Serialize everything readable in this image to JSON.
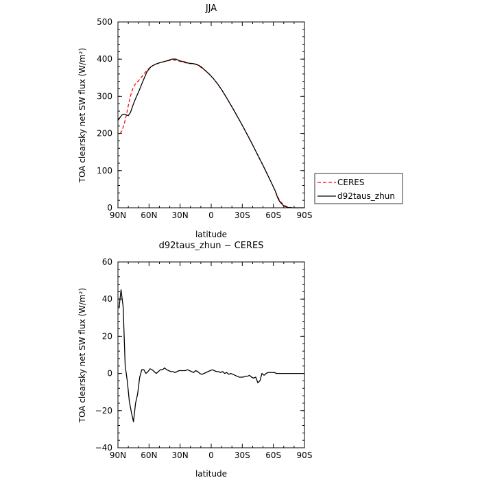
{
  "chart_data": [
    {
      "type": "line",
      "title": "JJA",
      "xlabel": "latitude",
      "ylabel": "TOA clearsky net SW flux (W/m²)",
      "xlim": [
        90,
        -90
      ],
      "ylim": [
        0,
        500
      ],
      "x_ticks": [
        90,
        60,
        30,
        0,
        -30,
        -60,
        -90
      ],
      "x_tick_labels": [
        "90N",
        "60N",
        "30N",
        "0",
        "30S",
        "60S",
        "90S"
      ],
      "y_ticks": [
        0,
        100,
        200,
        300,
        400,
        500
      ],
      "y_tick_labels": [
        "0",
        "100",
        "200",
        "300",
        "400",
        "500"
      ],
      "legend": "right",
      "series": [
        {
          "name": "CERES",
          "color": "#ff0000",
          "dash": "dashed",
          "x": [
            88,
            86,
            84,
            82,
            80,
            78,
            76,
            74,
            72,
            70,
            66,
            62,
            58,
            54,
            50,
            46,
            42,
            38,
            34,
            30,
            26,
            22,
            18,
            14,
            10,
            6,
            2,
            -2,
            -6,
            -10,
            -14,
            -18,
            -22,
            -26,
            -30,
            -34,
            -38,
            -42,
            -46,
            -50,
            -54,
            -58,
            -62,
            -64,
            -66,
            -70,
            -74,
            -78
          ],
          "y": [
            200,
            208,
            225,
            248,
            275,
            300,
            318,
            330,
            337,
            342,
            356,
            370,
            380,
            386,
            390,
            393,
            395,
            398,
            397,
            394,
            391,
            388,
            388,
            385,
            378,
            370,
            360,
            348,
            334,
            318,
            300,
            281,
            262,
            242,
            222,
            201,
            180,
            158,
            136,
            114,
            91,
            68,
            44,
            31,
            20,
            7,
            2,
            0
          ]
        },
        {
          "name": "d92taus_zhun",
          "color": "#000000",
          "dash": "solid",
          "x": [
            90,
            88,
            86,
            84,
            82,
            80,
            78,
            76,
            74,
            72,
            70,
            66,
            62,
            58,
            54,
            50,
            46,
            42,
            38,
            34,
            30,
            26,
            22,
            18,
            14,
            10,
            6,
            2,
            -2,
            -6,
            -10,
            -14,
            -18,
            -22,
            -26,
            -30,
            -34,
            -38,
            -42,
            -46,
            -50,
            -54,
            -58,
            -62,
            -64,
            -66,
            -70,
            -74,
            -78,
            -82,
            -86,
            -90
          ],
          "y": [
            235,
            243,
            250,
            252,
            250,
            248,
            256,
            272,
            287,
            300,
            312,
            340,
            366,
            380,
            386,
            390,
            393,
            396,
            400,
            400,
            395,
            393,
            389,
            388,
            386,
            380,
            370,
            360,
            348,
            334,
            318,
            300,
            281,
            262,
            242,
            222,
            201,
            180,
            158,
            136,
            114,
            91,
            68,
            44,
            28,
            17,
            5,
            1,
            0,
            0,
            0,
            0
          ]
        }
      ]
    },
    {
      "type": "line",
      "title": "d92taus_zhun − CERES",
      "xlabel": "latitude",
      "ylabel": "TOA clearsky net SW flux (W/m²)",
      "xlim": [
        90,
        -90
      ],
      "ylim": [
        -40,
        60
      ],
      "x_ticks": [
        90,
        60,
        30,
        0,
        -30,
        -60,
        -90
      ],
      "x_tick_labels": [
        "90N",
        "60N",
        "30N",
        "0",
        "30S",
        "60S",
        "90S"
      ],
      "y_ticks": [
        -40,
        -20,
        0,
        20,
        40,
        60
      ],
      "y_tick_labels": [
        "−40",
        "−20",
        "0",
        "20",
        "40",
        "60"
      ],
      "series": [
        {
          "color": "#000000",
          "dash": "solid",
          "x": [
            89,
            87,
            85,
            83,
            81,
            79,
            77,
            75,
            73,
            71,
            69,
            67,
            65,
            63,
            61,
            59,
            57,
            55,
            53,
            51,
            49,
            47,
            45,
            43,
            41,
            39,
            37,
            35,
            33,
            31,
            29,
            27,
            25,
            23,
            21,
            19,
            17,
            15,
            13,
            11,
            9,
            7,
            5,
            3,
            1,
            -1,
            -3,
            -5,
            -7,
            -9,
            -11,
            -13,
            -15,
            -17,
            -19,
            -21,
            -23,
            -25,
            -27,
            -29,
            -31,
            -33,
            -35,
            -37,
            -39,
            -41,
            -43,
            -45,
            -47,
            -49,
            -51,
            -53,
            -55,
            -57,
            -59,
            -61,
            -63,
            -65,
            -67,
            -69,
            -71,
            -73,
            -75,
            -77,
            -79,
            -81,
            -83,
            -85,
            -87,
            -89
          ],
          "y": [
            35,
            45,
            36,
            4,
            -4,
            -15,
            -21,
            -26,
            -16,
            -11,
            -2,
            2,
            2,
            0,
            1,
            2.5,
            2,
            1,
            0,
            1,
            2,
            2,
            3,
            2,
            1.5,
            1,
            1,
            0.5,
            1,
            1.5,
            1.5,
            1.5,
            1.5,
            2,
            1.5,
            1,
            0.5,
            1.5,
            1,
            0,
            -0.5,
            0,
            0.5,
            1,
            1.5,
            2,
            1.5,
            1,
            1,
            0.5,
            1,
            0,
            0.5,
            -0.5,
            0,
            -0.5,
            -1,
            -1.5,
            -2,
            -2,
            -2,
            -1.5,
            -1.5,
            -1,
            -2,
            -2.5,
            -2,
            -5,
            -4,
            0,
            -1,
            0,
            0.5,
            0.5,
            0.5,
            0.5,
            0,
            0,
            0,
            0,
            0,
            0,
            0,
            0,
            0,
            0,
            0,
            0,
            0,
            0
          ]
        }
      ]
    }
  ]
}
